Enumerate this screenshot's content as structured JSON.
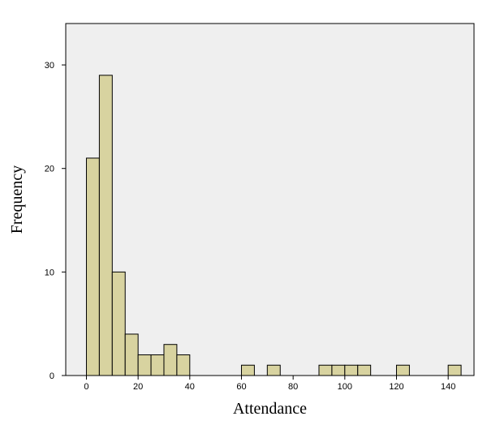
{
  "chart_data": {
    "type": "bar",
    "title": "",
    "xlabel": "Attendance",
    "ylabel": "Frequency",
    "xlim": [
      -8,
      150
    ],
    "ylim": [
      0,
      34
    ],
    "bin_width": 5,
    "bins": [
      {
        "start": 0,
        "end": 5,
        "count": 21
      },
      {
        "start": 5,
        "end": 10,
        "count": 29
      },
      {
        "start": 10,
        "end": 15,
        "count": 10
      },
      {
        "start": 15,
        "end": 20,
        "count": 4
      },
      {
        "start": 20,
        "end": 25,
        "count": 2
      },
      {
        "start": 25,
        "end": 30,
        "count": 2
      },
      {
        "start": 30,
        "end": 35,
        "count": 3
      },
      {
        "start": 35,
        "end": 40,
        "count": 2
      },
      {
        "start": 60,
        "end": 65,
        "count": 1
      },
      {
        "start": 70,
        "end": 75,
        "count": 1
      },
      {
        "start": 90,
        "end": 95,
        "count": 1
      },
      {
        "start": 95,
        "end": 100,
        "count": 1
      },
      {
        "start": 100,
        "end": 105,
        "count": 1
      },
      {
        "start": 105,
        "end": 110,
        "count": 1
      },
      {
        "start": 120,
        "end": 125,
        "count": 1
      },
      {
        "start": 140,
        "end": 145,
        "count": 1
      }
    ],
    "x_ticks": [
      "0",
      "20",
      "40",
      "60",
      "80",
      "100",
      "120",
      "140"
    ],
    "y_ticks": [
      "0",
      "10",
      "20",
      "30"
    ],
    "grid": false,
    "colors": {
      "bar_fill": "#d8d3a0",
      "bar_stroke": "#000000",
      "plot_background": "#efefef",
      "page_background": "#ffffff"
    }
  }
}
